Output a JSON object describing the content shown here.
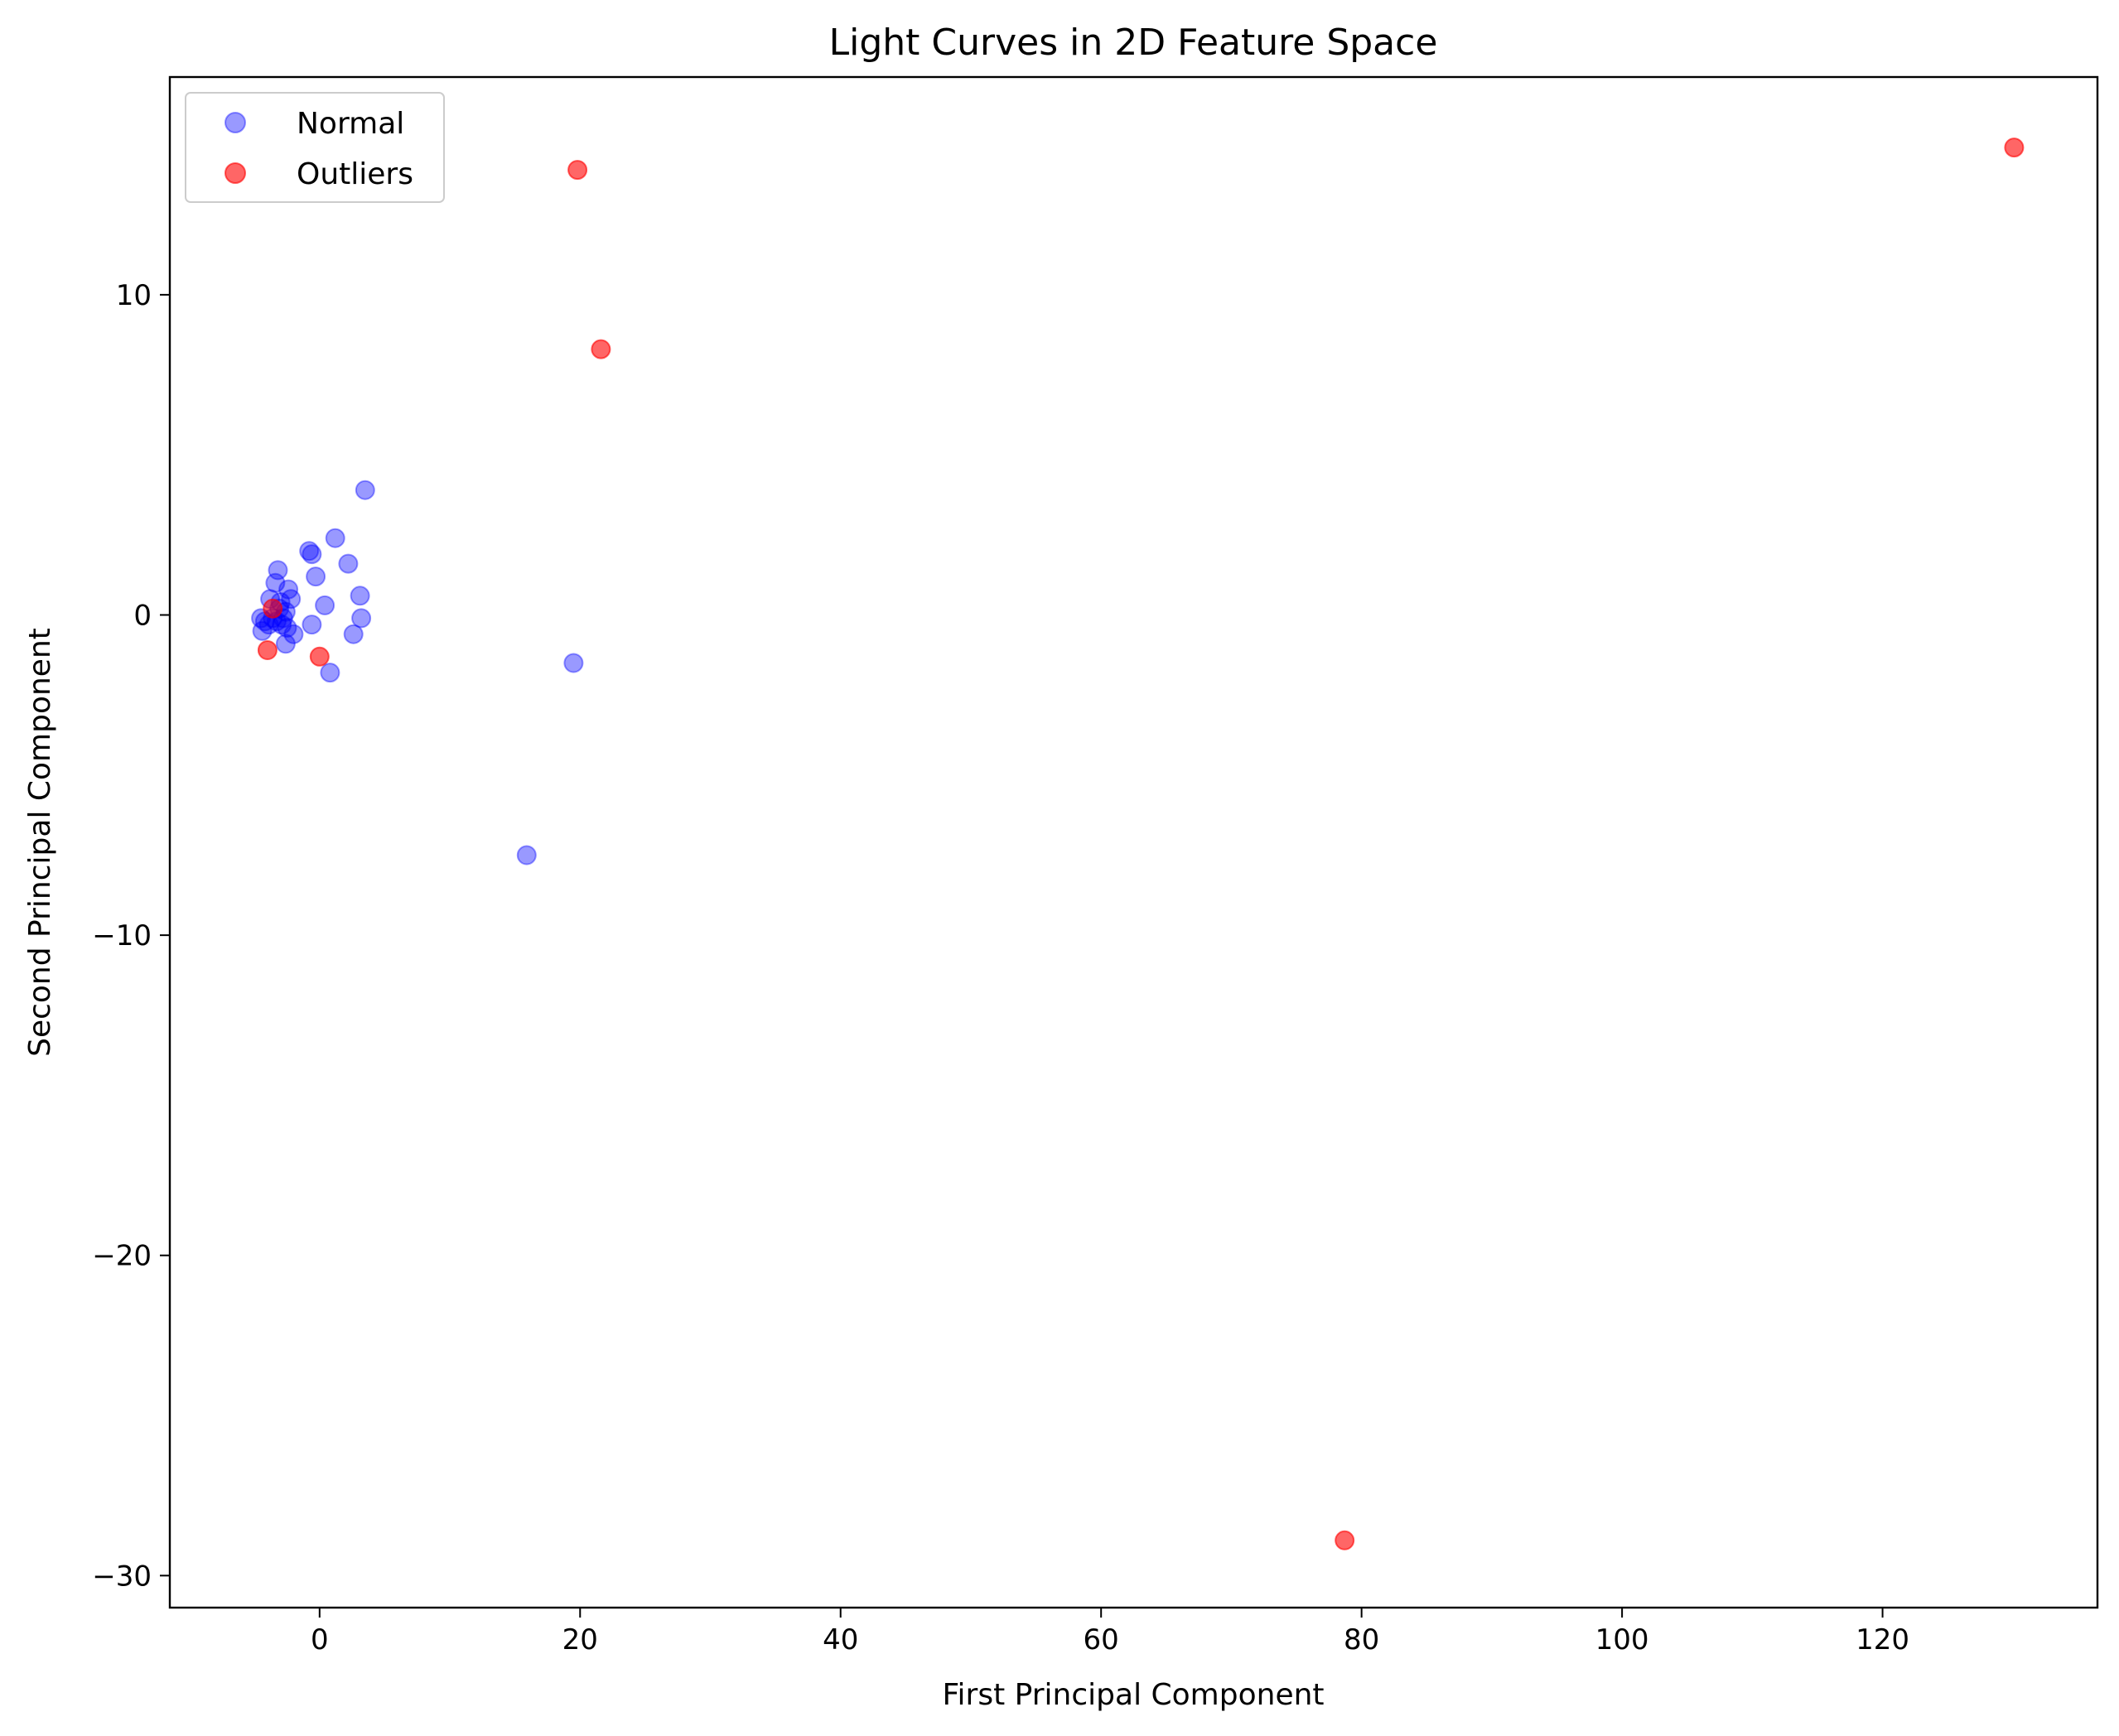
{
  "chart_data": {
    "type": "scatter",
    "title": "Light Curves in 2D Feature Space",
    "xlabel": "First Principal Component",
    "ylabel": "Second Principal Component",
    "xlim": [
      -11.5,
      136.5
    ],
    "ylim": [
      -31.0,
      16.8
    ],
    "xticks": [
      0,
      20,
      40,
      60,
      80,
      100,
      120
    ],
    "yticks": [
      10,
      0,
      -10,
      -20,
      -30
    ],
    "xtick_labels": [
      "0",
      "20",
      "40",
      "60",
      "80",
      "100",
      "120"
    ],
    "ytick_labels": [
      "10",
      "0",
      "−10",
      "−20",
      "−30"
    ],
    "grid": false,
    "legend": "upper left",
    "series": [
      {
        "name": "Normal",
        "color": "#0000ff",
        "alpha": 0.4,
        "points": [
          [
            3.5,
            3.9
          ],
          [
            1.2,
            2.4
          ],
          [
            -0.8,
            2.0
          ],
          [
            -0.6,
            1.9
          ],
          [
            2.2,
            1.6
          ],
          [
            -3.2,
            1.4
          ],
          [
            -0.3,
            1.2
          ],
          [
            -3.4,
            1.0
          ],
          [
            -2.4,
            0.8
          ],
          [
            -3.8,
            0.5
          ],
          [
            -2.2,
            0.5
          ],
          [
            3.1,
            0.6
          ],
          [
            0.4,
            0.3
          ],
          [
            -3.0,
            0.4
          ],
          [
            -2.6,
            0.1
          ],
          [
            -4.5,
            -0.1
          ],
          [
            -4.2,
            -0.2
          ],
          [
            -3.9,
            -0.3
          ],
          [
            -4.4,
            -0.5
          ],
          [
            -3.6,
            -0.1
          ],
          [
            -3.3,
            -0.2
          ],
          [
            -2.9,
            -0.3
          ],
          [
            -3.1,
            0.2
          ],
          [
            -2.8,
            -0.1
          ],
          [
            -2.5,
            -0.4
          ],
          [
            -2.0,
            -0.6
          ],
          [
            -2.6,
            -0.9
          ],
          [
            -0.6,
            -0.3
          ],
          [
            2.6,
            -0.6
          ],
          [
            3.2,
            -0.1
          ],
          [
            0.8,
            -1.8
          ],
          [
            19.5,
            -1.5
          ],
          [
            15.9,
            -7.5
          ]
        ]
      },
      {
        "name": "Outliers",
        "color": "#ff0000",
        "alpha": 0.6,
        "points": [
          [
            130.1,
            14.6
          ],
          [
            19.8,
            13.9
          ],
          [
            21.6,
            8.3
          ],
          [
            -3.6,
            0.2
          ],
          [
            -4.0,
            -1.1
          ],
          [
            0.0,
            -1.3
          ],
          [
            78.7,
            -28.9
          ]
        ]
      }
    ]
  }
}
